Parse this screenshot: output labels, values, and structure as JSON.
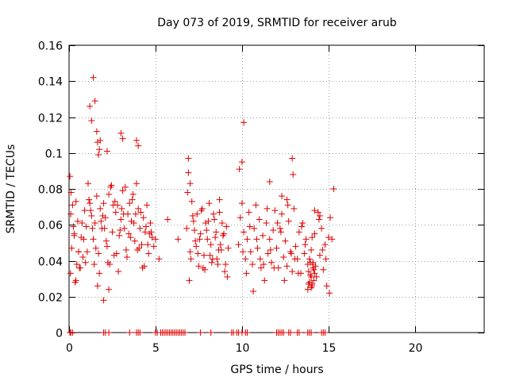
{
  "chart_data": {
    "type": "scatter",
    "title": "Day 073 of 2019, SRMTID for receiver arub",
    "xlabel": "GPS time / hours",
    "ylabel": "SRMTID / TECUs",
    "xlim": [
      0,
      24
    ],
    "ylim": [
      0,
      0.16
    ],
    "xticks": [
      0,
      5,
      10,
      15,
      20
    ],
    "xtick_labels": [
      "0",
      "5",
      "10",
      "15",
      "20"
    ],
    "yticks": [
      0,
      0.02,
      0.04,
      0.06,
      0.08,
      0.1,
      0.12,
      0.14,
      0.16
    ],
    "ytick_labels": [
      "0",
      "0.02",
      "0.04",
      "0.06",
      "0.08",
      "0.1",
      "0.12",
      "0.14",
      "0.16"
    ],
    "grid": true,
    "marker": "+",
    "series_color": "#dd0000",
    "series": [
      {
        "name": "SRMTID",
        "x": [
          0.05,
          0.1,
          0.15,
          0.2,
          0.25,
          0.3,
          0.35,
          0.4,
          0.45,
          0.5,
          0.55,
          0.6,
          0.7,
          0.8,
          0.9,
          1.0,
          1.1,
          1.2,
          1.3,
          1.4,
          1.5,
          1.6,
          1.7,
          1.8,
          1.9,
          2.0,
          2.1,
          2.2,
          2.3,
          2.4,
          2.5,
          2.6,
          2.7,
          2.8,
          2.9,
          3.0,
          3.1,
          3.2,
          3.3,
          3.4,
          3.5,
          3.6,
          3.7,
          3.8,
          3.9,
          4.0,
          4.1,
          4.2,
          4.3,
          4.4,
          4.5,
          4.6,
          4.7,
          4.8,
          4.9,
          5.0,
          5.2,
          0.08,
          0.3,
          0.55,
          0.75,
          0.95,
          1.15,
          1.35,
          1.55,
          1.75,
          1.95,
          2.15,
          2.35,
          2.55,
          2.75,
          2.95,
          3.15,
          3.35,
          3.55,
          3.75,
          3.95,
          4.15,
          4.35,
          4.55,
          4.75,
          0.12,
          0.4,
          0.65,
          0.85,
          1.05,
          1.25,
          1.45,
          1.65,
          1.85,
          2.05,
          2.25,
          2.45,
          2.65,
          2.85,
          3.05,
          3.25,
          3.45,
          3.65,
          3.85,
          4.05,
          4.25,
          4.45,
          4.65,
          1.2,
          1.3,
          1.4,
          1.5,
          1.6,
          1.65,
          1.7,
          1.75,
          1.8,
          2.2,
          3.0,
          3.1,
          3.9,
          4.0,
          2.0,
          2.3,
          6.8,
          6.9,
          7.0,
          7.1,
          7.2,
          7.3,
          7.4,
          7.5,
          7.6,
          7.7,
          7.8,
          7.9,
          8.0,
          8.1,
          8.2,
          8.3,
          8.4,
          8.5,
          8.6,
          8.7,
          8.8,
          8.9,
          9.0,
          9.1,
          9.2,
          6.85,
          7.05,
          7.25,
          7.45,
          7.65,
          7.85,
          8.05,
          8.25,
          8.45,
          8.65,
          8.85,
          9.05,
          6.95,
          7.15,
          7.35,
          7.55,
          7.75,
          7.95,
          8.15,
          8.35,
          8.55,
          8.75,
          8.95,
          9.15,
          6.9,
          7.0,
          8.7,
          5.7,
          6.3,
          9.8,
          9.9,
          10.0,
          10.1,
          10.2,
          10.3,
          10.4,
          10.5,
          10.6,
          10.7,
          10.8,
          10.9,
          11.0,
          11.1,
          11.2,
          11.3,
          11.4,
          11.5,
          11.6,
          11.7,
          11.8,
          11.9,
          12.0,
          12.1,
          12.2,
          12.3,
          12.4,
          12.5,
          12.6,
          12.7,
          12.8,
          12.9,
          13.0,
          13.1,
          13.2,
          13.3,
          13.4,
          13.5,
          13.6,
          13.7,
          13.8,
          13.9,
          14.0,
          14.1,
          14.2,
          14.3,
          14.4,
          14.5,
          14.6,
          14.7,
          14.8,
          14.9,
          15.0,
          15.1,
          15.2,
          9.85,
          10.05,
          10.25,
          10.45,
          10.65,
          10.85,
          11.05,
          11.25,
          11.45,
          11.65,
          11.85,
          12.05,
          12.25,
          12.45,
          12.65,
          12.85,
          13.05,
          13.25,
          13.45,
          13.65,
          13.85,
          14.05,
          14.25,
          14.45,
          14.65,
          14.85,
          15.05,
          13.8,
          13.85,
          13.9,
          13.95,
          14.0,
          14.05,
          14.1,
          14.15,
          14.2,
          13.9,
          14.0,
          14.1,
          13.95,
          14.05,
          14.15,
          10.1,
          10.0,
          12.9,
          12.95,
          15.3,
          11.6,
          12.3,
          12.6,
          14.2,
          14.5
        ],
        "y": [
          0.087,
          0.066,
          0.047,
          0.071,
          0.059,
          0.055,
          0.028,
          0.073,
          0.038,
          0.062,
          0.045,
          0.036,
          0.053,
          0.042,
          0.068,
          0.059,
          0.083,
          0.072,
          0.065,
          0.052,
          0.061,
          0.076,
          0.044,
          0.069,
          0.058,
          0.072,
          0.064,
          0.048,
          0.077,
          0.081,
          0.056,
          0.043,
          0.067,
          0.071,
          0.054,
          0.063,
          0.079,
          0.058,
          0.046,
          0.066,
          0.072,
          0.062,
          0.077,
          0.051,
          0.083,
          0.069,
          0.058,
          0.049,
          0.064,
          0.056,
          0.071,
          0.044,
          0.061,
          0.053,
          0.048,
          0.052,
          0.041,
          0.033,
          0.054,
          0.045,
          0.061,
          0.039,
          0.074,
          0.058,
          0.047,
          0.033,
          0.065,
          0.051,
          0.038,
          0.071,
          0.044,
          0.057,
          0.066,
          0.042,
          0.053,
          0.061,
          0.046,
          0.067,
          0.037,
          0.049,
          0.056,
          0.078,
          0.029,
          0.036,
          0.052,
          0.045,
          0.068,
          0.038,
          0.026,
          0.062,
          0.058,
          0.039,
          0.082,
          0.073,
          0.034,
          0.069,
          0.081,
          0.055,
          0.074,
          0.066,
          0.047,
          0.036,
          0.059,
          0.055,
          0.126,
          0.118,
          0.142,
          0.129,
          0.112,
          0.106,
          0.099,
          0.102,
          0.107,
          0.101,
          0.111,
          0.108,
          0.107,
          0.104,
          0.018,
          0.024,
          0.058,
          0.097,
          0.045,
          0.073,
          0.062,
          0.051,
          0.066,
          0.037,
          0.055,
          0.069,
          0.043,
          0.061,
          0.052,
          0.072,
          0.049,
          0.041,
          0.063,
          0.056,
          0.038,
          0.067,
          0.046,
          0.054,
          0.034,
          0.059,
          0.047,
          0.078,
          0.041,
          0.057,
          0.044,
          0.068,
          0.035,
          0.062,
          0.039,
          0.053,
          0.046,
          0.061,
          0.038,
          0.029,
          0.065,
          0.048,
          0.052,
          0.036,
          0.057,
          0.043,
          0.066,
          0.041,
          0.049,
          0.055,
          0.031,
          0.089,
          0.083,
          0.074,
          0.063,
          0.052,
          0.049,
          0.064,
          0.072,
          0.056,
          0.041,
          0.052,
          0.067,
          0.045,
          0.038,
          0.058,
          0.071,
          0.047,
          0.063,
          0.036,
          0.054,
          0.029,
          0.061,
          0.044,
          0.052,
          0.039,
          0.057,
          0.068,
          0.047,
          0.036,
          0.058,
          0.066,
          0.042,
          0.051,
          0.037,
          0.062,
          0.045,
          0.034,
          0.069,
          0.048,
          0.041,
          0.056,
          0.033,
          0.061,
          0.044,
          0.052,
          0.038,
          0.028,
          0.046,
          0.039,
          0.055,
          0.031,
          0.067,
          0.043,
          0.058,
          0.035,
          0.049,
          0.026,
          0.053,
          0.064,
          0.052,
          0.091,
          0.045,
          0.033,
          0.059,
          0.023,
          0.052,
          0.041,
          0.038,
          0.069,
          0.046,
          0.036,
          0.061,
          0.056,
          0.029,
          0.071,
          0.044,
          0.041,
          0.033,
          0.059,
          0.049,
          0.027,
          0.053,
          0.037,
          0.063,
          0.046,
          0.041,
          0.022,
          0.024,
          0.034,
          0.028,
          0.039,
          0.031,
          0.026,
          0.036,
          0.029,
          0.033,
          0.041,
          0.025,
          0.038,
          0.032,
          0.027,
          0.035,
          0.117,
          0.095,
          0.097,
          0.088,
          0.08,
          0.084,
          0.076,
          0.074,
          0.068,
          0.065
        ],
        "zero_x": [
          0.05,
          0.1,
          0.2,
          2.0,
          2.1,
          2.3,
          3.5,
          3.9,
          4.0,
          4.1,
          5.0,
          5.1,
          5.3,
          5.4,
          5.5,
          5.6,
          5.7,
          5.8,
          5.9,
          6.0,
          6.1,
          6.2,
          6.3,
          6.4,
          6.5,
          6.6,
          6.7,
          7.6,
          8.2,
          9.4,
          9.5,
          9.7,
          9.8,
          10.0,
          10.2,
          10.3,
          12.0,
          12.1,
          12.2,
          12.3,
          12.4,
          12.7,
          12.8,
          13.2,
          13.3,
          13.8,
          13.9,
          14.0,
          14.6,
          14.7,
          14.8
        ]
      }
    ]
  }
}
